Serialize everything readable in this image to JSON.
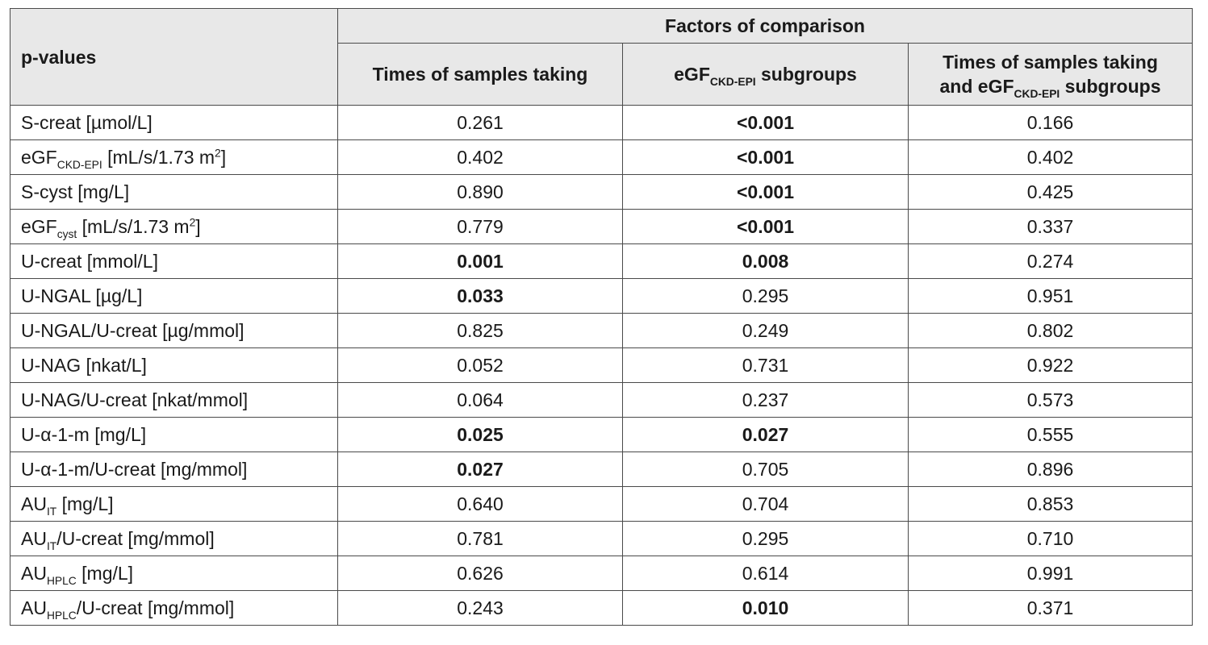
{
  "header": {
    "row_header": "p-values",
    "group_header": "Factors of comparison",
    "columns": [
      {
        "text": "Times of samples taking",
        "sub": "",
        "tail": "",
        "text2": "",
        "sub2": "",
        "tail2": ""
      },
      {
        "text": "eGF",
        "sub": "CKD-EPI",
        "tail": " subgroups",
        "text2": "",
        "sub2": "",
        "tail2": ""
      },
      {
        "text": "Times of samples taking",
        "sub": "",
        "tail": "",
        "text2": "and eGF",
        "sub2": "CKD-EPI",
        "tail2": " subgroups"
      }
    ]
  },
  "rows": [
    {
      "param": {
        "pre": "S-creat  [µmol/L]",
        "sub": "",
        "post": "",
        "sup": "",
        "end": ""
      },
      "values": [
        {
          "v": "0.261",
          "b": false
        },
        {
          "v": "<0.001",
          "b": true
        },
        {
          "v": "0.166",
          "b": false
        }
      ]
    },
    {
      "param": {
        "pre": "eGF",
        "sub": "CKD-EPI",
        "post": " [mL/s/1.73 m",
        "sup": "2",
        "end": "]"
      },
      "values": [
        {
          "v": "0.402",
          "b": false
        },
        {
          "v": "<0.001",
          "b": true
        },
        {
          "v": "0.402",
          "b": false
        }
      ]
    },
    {
      "param": {
        "pre": "S-cyst [mg/L]",
        "sub": "",
        "post": "",
        "sup": "",
        "end": ""
      },
      "values": [
        {
          "v": "0.890",
          "b": false
        },
        {
          "v": "<0.001",
          "b": true
        },
        {
          "v": "0.425",
          "b": false
        }
      ]
    },
    {
      "param": {
        "pre": "eGF",
        "sub": "cyst",
        "post": " [mL/s/1.73 m",
        "sup": "2",
        "end": "]"
      },
      "values": [
        {
          "v": "0.779",
          "b": false
        },
        {
          "v": "<0.001",
          "b": true
        },
        {
          "v": "0.337",
          "b": false
        }
      ]
    },
    {
      "param": {
        "pre": "U-creat [mmol/L]",
        "sub": "",
        "post": "",
        "sup": "",
        "end": ""
      },
      "values": [
        {
          "v": "0.001",
          "b": true
        },
        {
          "v": "0.008",
          "b": true
        },
        {
          "v": "0.274",
          "b": false
        }
      ]
    },
    {
      "param": {
        "pre": "U-NGAL [µg/L]",
        "sub": "",
        "post": "",
        "sup": "",
        "end": ""
      },
      "values": [
        {
          "v": "0.033",
          "b": true
        },
        {
          "v": "0.295",
          "b": false
        },
        {
          "v": "0.951",
          "b": false
        }
      ]
    },
    {
      "param": {
        "pre": "U-NGAL/U-creat [µg/mmol]",
        "sub": "",
        "post": "",
        "sup": "",
        "end": ""
      },
      "values": [
        {
          "v": "0.825",
          "b": false
        },
        {
          "v": "0.249",
          "b": false
        },
        {
          "v": "0.802",
          "b": false
        }
      ]
    },
    {
      "param": {
        "pre": "U-NAG [nkat/L]",
        "sub": "",
        "post": "",
        "sup": "",
        "end": ""
      },
      "values": [
        {
          "v": "0.052",
          "b": false
        },
        {
          "v": "0.731",
          "b": false
        },
        {
          "v": "0.922",
          "b": false
        }
      ]
    },
    {
      "param": {
        "pre": "U-NAG/U-creat [nkat/mmol]",
        "sub": "",
        "post": "",
        "sup": "",
        "end": ""
      },
      "values": [
        {
          "v": "0.064",
          "b": false
        },
        {
          "v": "0.237",
          "b": false
        },
        {
          "v": "0.573",
          "b": false
        }
      ]
    },
    {
      "param": {
        "pre": "U-α-1-m [mg/L]",
        "sub": "",
        "post": "",
        "sup": "",
        "end": ""
      },
      "values": [
        {
          "v": "0.025",
          "b": true
        },
        {
          "v": "0.027",
          "b": true
        },
        {
          "v": "0.555",
          "b": false
        }
      ]
    },
    {
      "param": {
        "pre": "U-α-1-m/U-creat [mg/mmol]",
        "sub": "",
        "post": "",
        "sup": "",
        "end": ""
      },
      "values": [
        {
          "v": "0.027",
          "b": true
        },
        {
          "v": "0.705",
          "b": false
        },
        {
          "v": "0.896",
          "b": false
        }
      ]
    },
    {
      "param": {
        "pre": "AU",
        "sub": "IT",
        "post": " [mg/L]",
        "sup": "",
        "end": ""
      },
      "values": [
        {
          "v": "0.640",
          "b": false
        },
        {
          "v": "0.704",
          "b": false
        },
        {
          "v": "0.853",
          "b": false
        }
      ]
    },
    {
      "param": {
        "pre": "AU",
        "sub": "IT",
        "post": "/U-creat [mg/mmol]",
        "sup": "",
        "end": ""
      },
      "values": [
        {
          "v": "0.781",
          "b": false
        },
        {
          "v": "0.295",
          "b": false
        },
        {
          "v": "0.710",
          "b": false
        }
      ]
    },
    {
      "param": {
        "pre": "AU",
        "sub": "HPLC",
        "post": " [mg/L]",
        "sup": "",
        "end": ""
      },
      "values": [
        {
          "v": "0.626",
          "b": false
        },
        {
          "v": "0.614",
          "b": false
        },
        {
          "v": "0.991",
          "b": false
        }
      ]
    },
    {
      "param": {
        "pre": "AU",
        "sub": "HPLC",
        "post": "/U-creat [mg/mmol]",
        "sup": "",
        "end": ""
      },
      "values": [
        {
          "v": "0.243",
          "b": false
        },
        {
          "v": "0.010",
          "b": true
        },
        {
          "v": "0.371",
          "b": false
        }
      ]
    }
  ]
}
